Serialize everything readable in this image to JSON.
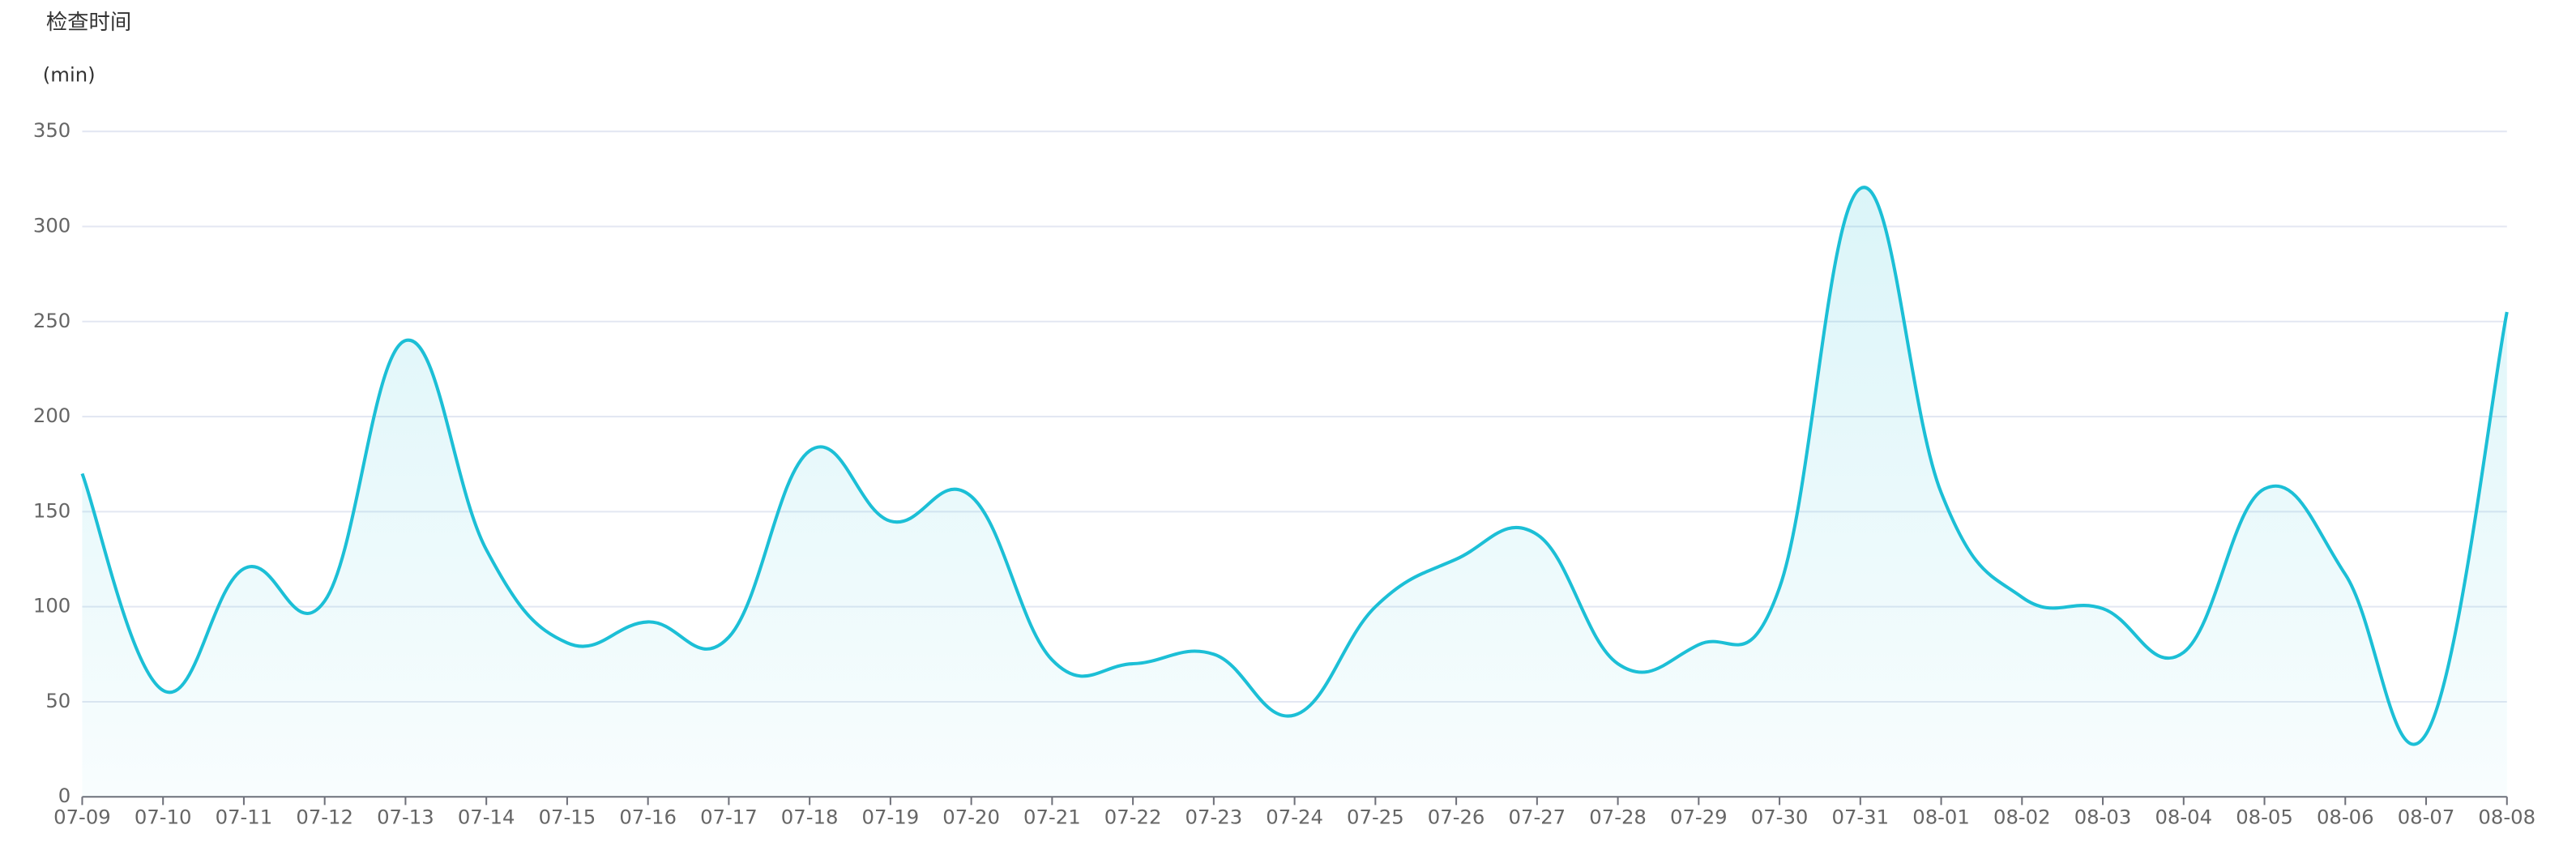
{
  "chart_data": {
    "type": "line",
    "title": "检查时间",
    "y_label": "(min)",
    "categories": [
      "07-09",
      "07-10",
      "07-11",
      "07-12",
      "07-13",
      "07-14",
      "07-15",
      "07-16",
      "07-17",
      "07-18",
      "07-19",
      "07-20",
      "07-21",
      "07-22",
      "07-23",
      "07-24",
      "07-25",
      "07-26",
      "07-27",
      "07-28",
      "07-29",
      "07-30",
      "07-31",
      "08-01",
      "08-02",
      "08-03",
      "08-04",
      "08-05",
      "08-06",
      "08-07",
      "08-08"
    ],
    "series": [
      {
        "color": "#1cbfd6",
        "values": [
          170,
          56,
          120,
          103,
          240,
          130,
          81,
          92,
          84,
          182,
          145,
          158,
          72,
          70,
          75,
          43,
          100,
          125,
          138,
          70,
          80,
          110,
          320,
          160,
          105,
          99,
          76,
          162,
          117,
          33,
          255
        ]
      }
    ],
    "ylim": [
      0,
      350
    ],
    "yticks": [
      0,
      50,
      100,
      150,
      200,
      250,
      300,
      350
    ],
    "grid": true,
    "smooth": true
  }
}
